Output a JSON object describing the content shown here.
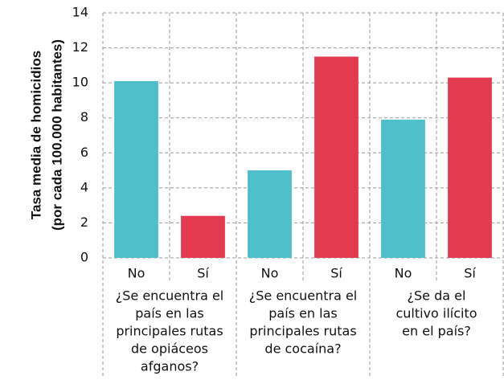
{
  "chart_data": {
    "type": "bar",
    "ylabel": [
      "Tasa media de homicidios",
      "(por cada 100.000 habitantes)"
    ],
    "categories": [
      "No",
      "Sí",
      "No",
      "Sí",
      "No",
      "Sí"
    ],
    "values": [
      10.1,
      2.4,
      5.0,
      11.5,
      7.9,
      10.3
    ],
    "colors": [
      "#4fc0cb",
      "#e43a4f",
      "#4fc0cb",
      "#e43a4f",
      "#4fc0cb",
      "#e43a4f"
    ],
    "groups": [
      [
        "¿Se encuentra el",
        "país en las",
        "principales rutas",
        "de opiáceos",
        "afganos?"
      ],
      [
        "¿Se encuentra el",
        "país en las",
        "principales rutas",
        "de cocaína?"
      ],
      [
        "¿Se da el",
        "cultivo ilícito",
        "en el país?"
      ]
    ],
    "ylim": [
      0,
      14
    ],
    "yticks": [
      0,
      2,
      4,
      6,
      8,
      10,
      12,
      14
    ],
    "grid": true
  }
}
